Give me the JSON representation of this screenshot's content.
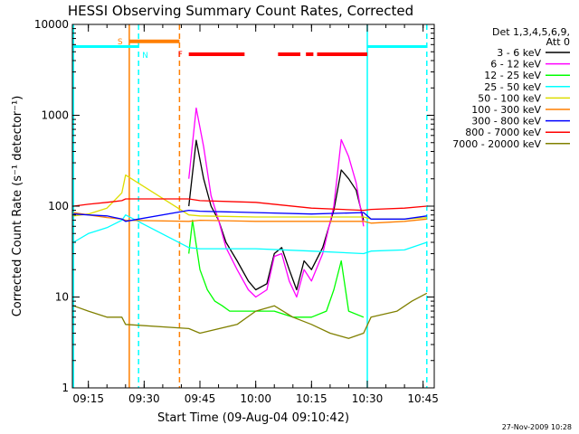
{
  "chart_data": {
    "type": "line",
    "title": "HESSI Observing Summary Count Rates, Corrected",
    "xlabel": "Start Time (09-Aug-04 09:10:42)",
    "ylabel": "Corrected Count Rate (s⁻¹ detector⁻¹)",
    "y_scale": "log",
    "ylim": [
      1,
      10000
    ],
    "xlim": [
      "09:10:42",
      "10:48:00"
    ],
    "x_ticks": [
      "09:15",
      "09:30",
      "09:45",
      "10:00",
      "10:15",
      "10:30",
      "10:45"
    ],
    "y_ticks": [
      "1",
      "10",
      "100",
      "1000",
      "10000"
    ],
    "legend_position": "right",
    "legend_header": [
      "Det 1,3,4,5,6,9,",
      "Att 0"
    ],
    "footer_date": "27-Nov-2009 10:28",
    "grid": false,
    "series": [
      {
        "name": "3 - 6 keV",
        "color": "#000000",
        "x": [
          "09:42",
          "09:44",
          "09:46",
          "09:48",
          "09:50",
          "09:52",
          "09:55",
          "09:58",
          "10:00",
          "10:03",
          "10:05",
          "10:07",
          "10:09",
          "10:11",
          "10:13",
          "10:15",
          "10:18",
          "10:21",
          "10:23",
          "10:25",
          "10:27",
          "10:29"
        ],
        "y": [
          100,
          530,
          200,
          100,
          70,
          40,
          25,
          15,
          12,
          14,
          30,
          35,
          20,
          12,
          25,
          20,
          35,
          90,
          250,
          200,
          150,
          70
        ]
      },
      {
        "name": "6 - 12 keV",
        "color": "#ff00ff",
        "x": [
          "09:42",
          "09:44",
          "09:46",
          "09:48",
          "09:50",
          "09:52",
          "09:55",
          "09:58",
          "10:00",
          "10:03",
          "10:05",
          "10:07",
          "10:09",
          "10:11",
          "10:13",
          "10:15",
          "10:18",
          "10:21",
          "10:23",
          "10:25",
          "10:27",
          "10:29"
        ],
        "y": [
          200,
          1200,
          450,
          130,
          70,
          35,
          20,
          12,
          10,
          12,
          28,
          30,
          15,
          10,
          20,
          15,
          30,
          100,
          540,
          350,
          180,
          60
        ]
      },
      {
        "name": "12 - 25 keV",
        "color": "#00ff00",
        "x": [
          "09:42",
          "09:43",
          "09:45",
          "09:47",
          "09:49",
          "09:51",
          "09:53",
          "09:55",
          "10:00",
          "10:05",
          "10:10",
          "10:15",
          "10:19",
          "10:21",
          "10:23",
          "10:25",
          "10:29"
        ],
        "y": [
          30,
          70,
          20,
          12,
          9,
          8,
          7,
          7,
          7,
          7,
          6,
          6,
          7,
          12,
          25,
          7,
          6
        ]
      },
      {
        "name": "25 - 50 keV",
        "color": "#00ffff",
        "x": [
          "09:11",
          "09:15",
          "09:20",
          "09:24",
          "09:25",
          "09:42",
          "09:45",
          "10:00",
          "10:15",
          "10:29",
          "10:31",
          "10:40",
          "10:46"
        ],
        "y": [
          40,
          50,
          58,
          70,
          80,
          35,
          34,
          34,
          32,
          30,
          32,
          33,
          40
        ]
      },
      {
        "name": "50 - 100 keV",
        "color": "#dddd00",
        "x": [
          "09:11",
          "09:15",
          "09:20",
          "09:24",
          "09:25",
          "09:42",
          "09:45",
          "10:00",
          "10:15",
          "10:29",
          "10:31",
          "10:40",
          "10:46"
        ],
        "y": [
          78,
          82,
          95,
          140,
          220,
          80,
          78,
          76,
          76,
          76,
          72,
          72,
          75
        ]
      },
      {
        "name": "100 - 300 keV",
        "color": "#ff7f00",
        "x": [
          "09:11",
          "09:15",
          "09:20",
          "09:24",
          "09:25",
          "09:42",
          "09:45",
          "10:00",
          "10:15",
          "10:29",
          "10:31",
          "10:40",
          "10:46"
        ],
        "y": [
          85,
          80,
          75,
          72,
          70,
          68,
          70,
          68,
          68,
          68,
          65,
          68,
          72
        ]
      },
      {
        "name": "300 - 800 keV",
        "color": "#0000ff",
        "x": [
          "09:11",
          "09:15",
          "09:20",
          "09:24",
          "09:25",
          "09:42",
          "09:45",
          "10:00",
          "10:15",
          "10:29",
          "10:31",
          "10:40",
          "10:46"
        ],
        "y": [
          82,
          80,
          78,
          72,
          68,
          90,
          88,
          85,
          82,
          85,
          72,
          72,
          78
        ]
      },
      {
        "name": "800 - 7000 keV",
        "color": "#ff0000",
        "x": [
          "09:11",
          "09:15",
          "09:20",
          "09:24",
          "09:25",
          "09:42",
          "09:45",
          "10:00",
          "10:15",
          "10:29",
          "10:31",
          "10:40",
          "10:46"
        ],
        "y": [
          100,
          105,
          110,
          115,
          120,
          120,
          115,
          110,
          95,
          90,
          92,
          95,
          100
        ]
      },
      {
        "name": "7000 - 20000 keV",
        "color": "#808000",
        "x": [
          "09:11",
          "09:15",
          "09:20",
          "09:24",
          "09:25",
          "09:42",
          "09:45",
          "09:55",
          "10:00",
          "10:05",
          "10:10",
          "10:15",
          "10:20",
          "10:25",
          "10:29",
          "10:31",
          "10:38",
          "10:42",
          "10:46"
        ],
        "y": [
          8,
          7,
          6,
          6,
          5,
          4.5,
          4,
          5,
          7,
          8,
          6,
          5,
          4,
          3.5,
          4,
          6,
          7,
          9,
          11
        ]
      }
    ],
    "state_bars": [
      {
        "label": "S",
        "color": "#ff7f00",
        "from": "09:26",
        "to": "09:39.5",
        "y": 6500
      },
      {
        "label": "N",
        "color": "#00ffff",
        "from": "09:28.5",
        "to": "09:28.5",
        "y": 4600
      },
      {
        "label": "F",
        "color": "#ff0000",
        "from": "09:42",
        "to": "10:30",
        "y": 4700,
        "gaps": [
          [
            "09:57",
            "10:06"
          ],
          [
            "10:12",
            "10:13.5"
          ],
          [
            "10:15.5",
            "10:16.5"
          ]
        ]
      }
    ],
    "saa_levels": [
      {
        "color": "#00ffff",
        "from": "09:11",
        "to": "09:28.5",
        "y": 5700
      },
      {
        "color": "#00ffff",
        "from": "10:30",
        "to": "10:46",
        "y": 5700
      }
    ],
    "vertical_markers": [
      {
        "time": "09:11",
        "color": "#00ffff",
        "style": "solid"
      },
      {
        "time": "09:26",
        "color": "#ff7f00",
        "style": "solid"
      },
      {
        "time": "09:28.5",
        "color": "#00ffff",
        "style": "dashed"
      },
      {
        "time": "09:39.5",
        "color": "#ff7f00",
        "style": "dashed"
      },
      {
        "time": "10:30",
        "color": "#00ffff",
        "style": "solid"
      },
      {
        "time": "10:46",
        "color": "#00ffff",
        "style": "dashed"
      }
    ]
  }
}
